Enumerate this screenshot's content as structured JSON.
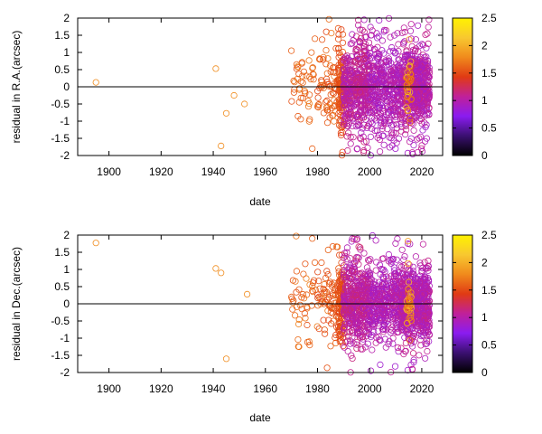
{
  "chart_data": [
    {
      "type": "scatter",
      "title": "",
      "xlabel": "date",
      "ylabel": "residual in R.A.(arcsec)",
      "xlim": [
        1888,
        2028
      ],
      "ylim": [
        -2,
        2
      ],
      "x_ticks": [
        "1900",
        "1920",
        "1940",
        "1960",
        "1980",
        "2000",
        "2020"
      ],
      "x_tick_values": [
        1900,
        1920,
        1940,
        1960,
        1980,
        2000,
        2020
      ],
      "y_ticks": [
        "-2",
        "-1.5",
        "-1",
        "-0.5",
        "0",
        "0.5",
        "1",
        "1.5",
        "2"
      ],
      "y_tick_values": [
        -2,
        -1.5,
        -1,
        -0.5,
        0,
        0.5,
        1,
        1.5,
        2
      ],
      "zero_line": true,
      "grid": false,
      "legend": "none",
      "colorbar": {
        "label": "",
        "range": [
          0,
          2.5
        ],
        "ticks": [
          "0",
          "0.5",
          "1",
          "1.5",
          "2",
          "2.5"
        ],
        "tick_values": [
          0,
          0.5,
          1,
          1.5,
          2,
          2.5
        ],
        "palette": [
          "#000000",
          "#3a1070",
          "#8a1cf0",
          "#c0209a",
          "#e03a14",
          "#f08a1c",
          "#f8c830",
          "#fff200"
        ]
      },
      "isolated_points": [
        {
          "x": 1895,
          "y": 0.13,
          "c": 1.8
        },
        {
          "x": 1941,
          "y": 0.53,
          "c": 1.8
        },
        {
          "x": 1943,
          "y": -1.72,
          "c": 1.8
        },
        {
          "x": 1945,
          "y": -0.77,
          "c": 1.8
        },
        {
          "x": 1948,
          "y": -0.25,
          "c": 1.8
        },
        {
          "x": 1952,
          "y": -0.5,
          "c": 1.8
        },
        {
          "x": 1970,
          "y": 1.05,
          "c": 1.6
        },
        {
          "x": 1972,
          "y": 0.65,
          "c": 1.6
        },
        {
          "x": 1973,
          "y": -0.45,
          "c": 1.6
        },
        {
          "x": 1977,
          "y": -0.95,
          "c": 1.6
        },
        {
          "x": 1978,
          "y": -1.8,
          "c": 1.6
        },
        {
          "x": 1979,
          "y": 1.4,
          "c": 1.6
        }
      ],
      "clusters": [
        {
          "x_range": [
            1970,
            1980
          ],
          "count": 40,
          "c_range": [
            1.5,
            1.75
          ],
          "spread": 0.55
        },
        {
          "x_range": [
            1980,
            1988
          ],
          "count": 70,
          "c_range": [
            1.45,
            1.7
          ],
          "spread": 0.55
        },
        {
          "x_range": [
            1988,
            1990
          ],
          "count": 120,
          "c_range": [
            1.45,
            1.6
          ],
          "spread": 0.55
        },
        {
          "x_range": [
            1990,
            2000
          ],
          "count": 450,
          "c_range": [
            0.9,
            1.2
          ],
          "spread": 0.6
        },
        {
          "x_range": [
            2000,
            2012
          ],
          "count": 380,
          "c_range": [
            0.85,
            1.1
          ],
          "spread": 0.6
        },
        {
          "x_range": [
            2012,
            2023
          ],
          "count": 650,
          "c_range": [
            0.85,
            1.15
          ],
          "spread": 0.5
        },
        {
          "x_range": [
            2014,
            2016
          ],
          "count": 40,
          "c_range": [
            1.5,
            2.1
          ],
          "spread": 0.35
        }
      ]
    },
    {
      "type": "scatter",
      "title": "",
      "xlabel": "date",
      "ylabel": "residual in Dec.(arcsec)",
      "xlim": [
        1888,
        2028
      ],
      "ylim": [
        -2,
        2
      ],
      "x_ticks": [
        "1900",
        "1920",
        "1940",
        "1960",
        "1980",
        "2000",
        "2020"
      ],
      "x_tick_values": [
        1900,
        1920,
        1940,
        1960,
        1980,
        2000,
        2020
      ],
      "y_ticks": [
        "-2",
        "-1.5",
        "-1",
        "-0.5",
        "0",
        "0.5",
        "1",
        "1.5",
        "2"
      ],
      "y_tick_values": [
        -2,
        -1.5,
        -1,
        -0.5,
        0,
        0.5,
        1,
        1.5,
        2
      ],
      "zero_line": true,
      "grid": false,
      "legend": "none",
      "colorbar": {
        "label": "",
        "range": [
          0,
          2.5
        ],
        "ticks": [
          "0",
          "0.5",
          "1",
          "1.5",
          "2",
          "2.5"
        ],
        "tick_values": [
          0,
          0.5,
          1,
          1.5,
          2,
          2.5
        ],
        "palette": [
          "#000000",
          "#3a1070",
          "#8a1cf0",
          "#c0209a",
          "#e03a14",
          "#f08a1c",
          "#f8c830",
          "#fff200"
        ]
      },
      "isolated_points": [
        {
          "x": 1895,
          "y": 1.77,
          "c": 1.8
        },
        {
          "x": 1941,
          "y": 1.03,
          "c": 1.8
        },
        {
          "x": 1943,
          "y": 0.9,
          "c": 1.8
        },
        {
          "x": 1945,
          "y": -1.6,
          "c": 1.8
        },
        {
          "x": 1953,
          "y": 0.28,
          "c": 1.8
        },
        {
          "x": 1970,
          "y": 0.2,
          "c": 1.6
        },
        {
          "x": 1972,
          "y": 0.95,
          "c": 1.6
        },
        {
          "x": 1974,
          "y": -0.15,
          "c": 1.6
        },
        {
          "x": 1977,
          "y": -1.2,
          "c": 1.6
        },
        {
          "x": 1978,
          "y": 1.9,
          "c": 1.6
        },
        {
          "x": 1979,
          "y": 1.2,
          "c": 1.6
        }
      ],
      "clusters": [
        {
          "x_range": [
            1970,
            1980
          ],
          "count": 40,
          "c_range": [
            1.5,
            1.75
          ],
          "spread": 0.55
        },
        {
          "x_range": [
            1980,
            1988
          ],
          "count": 70,
          "c_range": [
            1.45,
            1.7
          ],
          "spread": 0.5
        },
        {
          "x_range": [
            1988,
            1990
          ],
          "count": 120,
          "c_range": [
            1.45,
            1.6
          ],
          "spread": 0.55
        },
        {
          "x_range": [
            1990,
            2000
          ],
          "count": 450,
          "c_range": [
            0.9,
            1.2
          ],
          "spread": 0.55
        },
        {
          "x_range": [
            2000,
            2012
          ],
          "count": 380,
          "c_range": [
            0.85,
            1.1
          ],
          "spread": 0.5
        },
        {
          "x_range": [
            2012,
            2023
          ],
          "count": 650,
          "c_range": [
            0.85,
            1.15
          ],
          "spread": 0.5
        },
        {
          "x_range": [
            2014,
            2016
          ],
          "count": 40,
          "c_range": [
            1.5,
            2.1
          ],
          "spread": 0.3
        }
      ]
    }
  ]
}
